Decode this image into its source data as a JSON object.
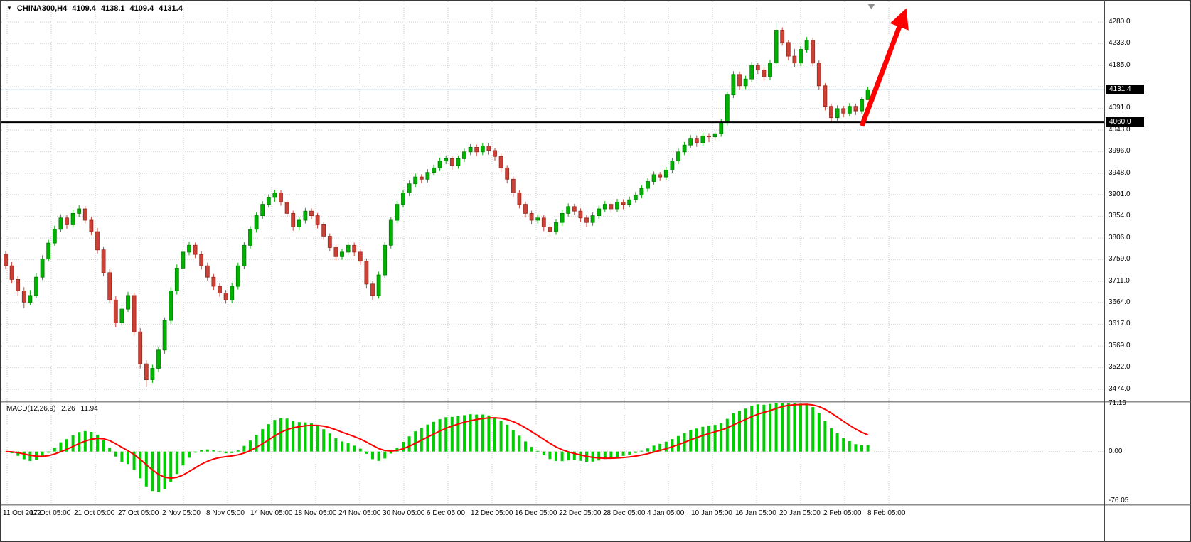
{
  "header": {
    "symbol": "CHINA300,H4",
    "open": "4109.4",
    "high": "4138.1",
    "low": "4109.4",
    "close": "4131.4"
  },
  "price_axis": {
    "labels": [
      {
        "text": "4280.0",
        "price": 4280
      },
      {
        "text": "4233.0",
        "price": 4233
      },
      {
        "text": "4185.0",
        "price": 4185
      },
      {
        "text": "",
        "price": 4138
      },
      {
        "text": "4091.0",
        "price": 4091
      },
      {
        "text": "4043.0",
        "price": 4043
      },
      {
        "text": "3996.0",
        "price": 3996
      },
      {
        "text": "3948.0",
        "price": 3948
      },
      {
        "text": "3901.0",
        "price": 3901
      },
      {
        "text": "3854.0",
        "price": 3854
      },
      {
        "text": "3806.0",
        "price": 3806
      },
      {
        "text": "3759.0",
        "price": 3759
      },
      {
        "text": "3711.0",
        "price": 3711
      },
      {
        "text": "3664.0",
        "price": 3664
      },
      {
        "text": "3617.0",
        "price": 3617
      },
      {
        "text": "3569.0",
        "price": 3569
      },
      {
        "text": "3522.0",
        "price": 3522
      },
      {
        "text": "3474.0",
        "price": 3474
      }
    ],
    "current_badge": {
      "text": "4131.4",
      "price": 4131.4
    },
    "level_badge": {
      "text": "4060.0",
      "price": 4060
    }
  },
  "macd_axis": [
    {
      "text": "71.19",
      "value": 71.19
    },
    {
      "text": "0.00",
      "value": 0
    },
    {
      "text": "-76.05",
      "value": -76.05
    }
  ],
  "colors": {
    "candle_up": "#00B200",
    "candle_up_border": "#007A00",
    "candle_down": "#CC4036",
    "candle_down_border": "#96281F",
    "histogram": "#00CE00",
    "signal": "#FF0000",
    "arrow": "#FF0000",
    "grid": "#C9C9C9",
    "divider": "#8C8C8C",
    "axis_separator": "#4A4A4A",
    "current_price_line": "#A8C0D0",
    "support_line": "#000000",
    "badge_bg": "#000000",
    "badge_text": "#FFFFFF"
  },
  "chart_data": {
    "type": "candlestick",
    "symbol": "CHINA300",
    "timeframe": "H4",
    "title": "CHINA300,H4",
    "ylim": [
      3474,
      4280
    ],
    "y_ticks": [
      4280,
      4233,
      4185,
      4138,
      4091,
      4043,
      3996,
      3948,
      3901,
      3854,
      3806,
      3759,
      3711,
      3664,
      3617,
      3569,
      3522,
      3474
    ],
    "x_labels": [
      "11 Oct 2022",
      "17 Oct 05:00",
      "21 Oct 05:00",
      "27 Oct 05:00",
      "2 Nov 05:00",
      "8 Nov 05:00",
      "14 Nov 05:00",
      "18 Nov 05:00",
      "24 Nov 05:00",
      "30 Nov 05:00",
      "6 Dec 05:00",
      "12 Dec 05:00",
      "16 Dec 05:00",
      "22 Dec 05:00",
      "28 Dec 05:00",
      "4 Jan 05:00",
      "10 Jan 05:00",
      "16 Jan 05:00",
      "20 Jan 05:00",
      "2 Feb 05:00",
      "8 Feb 05:00"
    ],
    "candles": [
      [
        3770,
        3778,
        3738,
        3745
      ],
      [
        3745,
        3753,
        3706,
        3715
      ],
      [
        3715,
        3722,
        3680,
        3690
      ],
      [
        3690,
        3698,
        3652,
        3665
      ],
      [
        3665,
        3692,
        3658,
        3680
      ],
      [
        3680,
        3728,
        3674,
        3720
      ],
      [
        3720,
        3768,
        3714,
        3760
      ],
      [
        3760,
        3802,
        3754,
        3795
      ],
      [
        3795,
        3833,
        3789,
        3825
      ],
      [
        3825,
        3858,
        3819,
        3850
      ],
      [
        3850,
        3856,
        3826,
        3835
      ],
      [
        3835,
        3868,
        3829,
        3860
      ],
      [
        3860,
        3878,
        3852,
        3870
      ],
      [
        3870,
        3876,
        3838,
        3845
      ],
      [
        3845,
        3852,
        3812,
        3820
      ],
      [
        3820,
        3828,
        3772,
        3780
      ],
      [
        3780,
        3786,
        3722,
        3730
      ],
      [
        3730,
        3738,
        3662,
        3670
      ],
      [
        3670,
        3678,
        3610,
        3620
      ],
      [
        3620,
        3658,
        3612,
        3650
      ],
      [
        3650,
        3688,
        3644,
        3680
      ],
      [
        3680,
        3686,
        3592,
        3600
      ],
      [
        3600,
        3608,
        3520,
        3530
      ],
      [
        3530,
        3538,
        3479,
        3495
      ],
      [
        3495,
        3528,
        3488,
        3520
      ],
      [
        3520,
        3568,
        3512,
        3560
      ],
      [
        3560,
        3632,
        3552,
        3625
      ],
      [
        3625,
        3698,
        3618,
        3690
      ],
      [
        3690,
        3748,
        3682,
        3740
      ],
      [
        3740,
        3782,
        3732,
        3775
      ],
      [
        3775,
        3798,
        3768,
        3790
      ],
      [
        3790,
        3796,
        3762,
        3770
      ],
      [
        3770,
        3777,
        3737,
        3745
      ],
      [
        3745,
        3752,
        3712,
        3720
      ],
      [
        3720,
        3727,
        3692,
        3700
      ],
      [
        3700,
        3707,
        3677,
        3685
      ],
      [
        3685,
        3692,
        3662,
        3670
      ],
      [
        3670,
        3708,
        3663,
        3700
      ],
      [
        3700,
        3752,
        3693,
        3745
      ],
      [
        3745,
        3797,
        3738,
        3790
      ],
      [
        3790,
        3832,
        3783,
        3825
      ],
      [
        3825,
        3862,
        3818,
        3855
      ],
      [
        3855,
        3887,
        3848,
        3880
      ],
      [
        3880,
        3902,
        3873,
        3895
      ],
      [
        3895,
        3912,
        3885,
        3905
      ],
      [
        3905,
        3911,
        3877,
        3885
      ],
      [
        3885,
        3891,
        3852,
        3860
      ],
      [
        3860,
        3866,
        3822,
        3830
      ],
      [
        3830,
        3852,
        3823,
        3845
      ],
      [
        3845,
        3872,
        3838,
        3865
      ],
      [
        3865,
        3871,
        3847,
        3855
      ],
      [
        3855,
        3861,
        3827,
        3835
      ],
      [
        3835,
        3841,
        3802,
        3810
      ],
      [
        3810,
        3816,
        3777,
        3785
      ],
      [
        3785,
        3791,
        3757,
        3765
      ],
      [
        3765,
        3782,
        3758,
        3775
      ],
      [
        3775,
        3797,
        3768,
        3790
      ],
      [
        3790,
        3796,
        3767,
        3775
      ],
      [
        3775,
        3781,
        3747,
        3755
      ],
      [
        3755,
        3761,
        3695,
        3705
      ],
      [
        3705,
        3711,
        3670,
        3680
      ],
      [
        3680,
        3732,
        3673,
        3725
      ],
      [
        3725,
        3797,
        3718,
        3790
      ],
      [
        3790,
        3852,
        3783,
        3845
      ],
      [
        3845,
        3887,
        3838,
        3880
      ],
      [
        3880,
        3912,
        3873,
        3905
      ],
      [
        3905,
        3932,
        3898,
        3925
      ],
      [
        3925,
        3947,
        3918,
        3940
      ],
      [
        3940,
        3946,
        3926,
        3935
      ],
      [
        3935,
        3957,
        3928,
        3950
      ],
      [
        3950,
        3967,
        3943,
        3960
      ],
      [
        3960,
        3982,
        3953,
        3975
      ],
      [
        3975,
        3987,
        3968,
        3980
      ],
      [
        3980,
        3986,
        3956,
        3965
      ],
      [
        3965,
        3987,
        3958,
        3980
      ],
      [
        3980,
        4002,
        3973,
        3995
      ],
      [
        3995,
        4012,
        3988,
        4005
      ],
      [
        4005,
        4011,
        3986,
        3995
      ],
      [
        3995,
        4015,
        3988,
        4008
      ],
      [
        4008,
        4014,
        3989,
        3998
      ],
      [
        3998,
        4004,
        3976,
        3985
      ],
      [
        3985,
        3991,
        3951,
        3960
      ],
      [
        3960,
        3966,
        3926,
        3935
      ],
      [
        3935,
        3941,
        3896,
        3905
      ],
      [
        3905,
        3911,
        3871,
        3880
      ],
      [
        3880,
        3886,
        3851,
        3860
      ],
      [
        3860,
        3866,
        3836,
        3845
      ],
      [
        3845,
        3858,
        3838,
        3850
      ],
      [
        3850,
        3856,
        3821,
        3830
      ],
      [
        3830,
        3837,
        3809,
        3820
      ],
      [
        3820,
        3847,
        3813,
        3840
      ],
      [
        3840,
        3867,
        3833,
        3860
      ],
      [
        3860,
        3882,
        3853,
        3875
      ],
      [
        3875,
        3881,
        3856,
        3865
      ],
      [
        3865,
        3871,
        3841,
        3850
      ],
      [
        3850,
        3857,
        3831,
        3840
      ],
      [
        3840,
        3862,
        3833,
        3855
      ],
      [
        3855,
        3877,
        3848,
        3870
      ],
      [
        3870,
        3887,
        3863,
        3880
      ],
      [
        3880,
        3886,
        3861,
        3870
      ],
      [
        3870,
        3892,
        3863,
        3885
      ],
      [
        3885,
        3891,
        3869,
        3880
      ],
      [
        3880,
        3897,
        3873,
        3890
      ],
      [
        3890,
        3907,
        3883,
        3900
      ],
      [
        3900,
        3922,
        3893,
        3915
      ],
      [
        3915,
        3937,
        3908,
        3930
      ],
      [
        3930,
        3952,
        3923,
        3945
      ],
      [
        3945,
        3951,
        3931,
        3940
      ],
      [
        3940,
        3962,
        3933,
        3955
      ],
      [
        3955,
        3982,
        3948,
        3975
      ],
      [
        3975,
        4002,
        3968,
        3995
      ],
      [
        3995,
        4017,
        3988,
        4010
      ],
      [
        4010,
        4032,
        4003,
        4025
      ],
      [
        4025,
        4031,
        4006,
        4015
      ],
      [
        4015,
        4037,
        4008,
        4030
      ],
      [
        4030,
        4036,
        4016,
        4028
      ],
      [
        4028,
        4042,
        4019,
        4035
      ],
      [
        4035,
        4067,
        4028,
        4060
      ],
      [
        4060,
        4127,
        4053,
        4120
      ],
      [
        4120,
        4172,
        4113,
        4165
      ],
      [
        4165,
        4171,
        4131,
        4140
      ],
      [
        4140,
        4162,
        4133,
        4155
      ],
      [
        4155,
        4192,
        4148,
        4185
      ],
      [
        4185,
        4191,
        4166,
        4175
      ],
      [
        4175,
        4181,
        4151,
        4160
      ],
      [
        4160,
        4197,
        4153,
        4190
      ],
      [
        4190,
        4282,
        4183,
        4262
      ],
      [
        4262,
        4268,
        4228,
        4235
      ],
      [
        4235,
        4241,
        4196,
        4205
      ],
      [
        4205,
        4221,
        4181,
        4190
      ],
      [
        4190,
        4227,
        4183,
        4220
      ],
      [
        4220,
        4247,
        4213,
        4240
      ],
      [
        4240,
        4246,
        4183,
        4190
      ],
      [
        4190,
        4196,
        4131,
        4140
      ],
      [
        4140,
        4146,
        4086,
        4095
      ],
      [
        4095,
        4101,
        4062,
        4070
      ],
      [
        4070,
        4097,
        4063,
        4090
      ],
      [
        4090,
        4096,
        4071,
        4080
      ],
      [
        4080,
        4102,
        4073,
        4095
      ],
      [
        4095,
        4101,
        4076,
        4085
      ],
      [
        4085,
        4115,
        4078,
        4109.4
      ],
      [
        4109.4,
        4138.1,
        4109.4,
        4131.4
      ]
    ],
    "last_bar": {
      "open": 4109.4,
      "high": 4138.1,
      "low": 4109.4,
      "close": 4131.4
    },
    "annotations": {
      "support_line": {
        "price": 4060.0,
        "style": "solid",
        "color": "#000000",
        "width": 2
      },
      "current_price_line": {
        "price": 4131.4,
        "color": "#A8C0D0"
      },
      "trend_arrow": {
        "color": "#FF0000",
        "direction": "up-right",
        "from": {
          "candle": 140,
          "price": 4052
        },
        "to": {
          "candle": 147,
          "price": 4300
        }
      }
    },
    "indicator": {
      "name": "MACD",
      "label": "MACD(12,26,9)",
      "params": {
        "fast": 12,
        "slow": 26,
        "signal": 9
      },
      "main_value": "2.26",
      "signal_value": "11.94",
      "axis_max": 71.19,
      "axis_min": -76.05,
      "axis_labels": [
        "71.19",
        "0.00",
        "-76.05"
      ],
      "legend_position": "top-left"
    },
    "grid": true,
    "background": "#FFFFFF"
  }
}
